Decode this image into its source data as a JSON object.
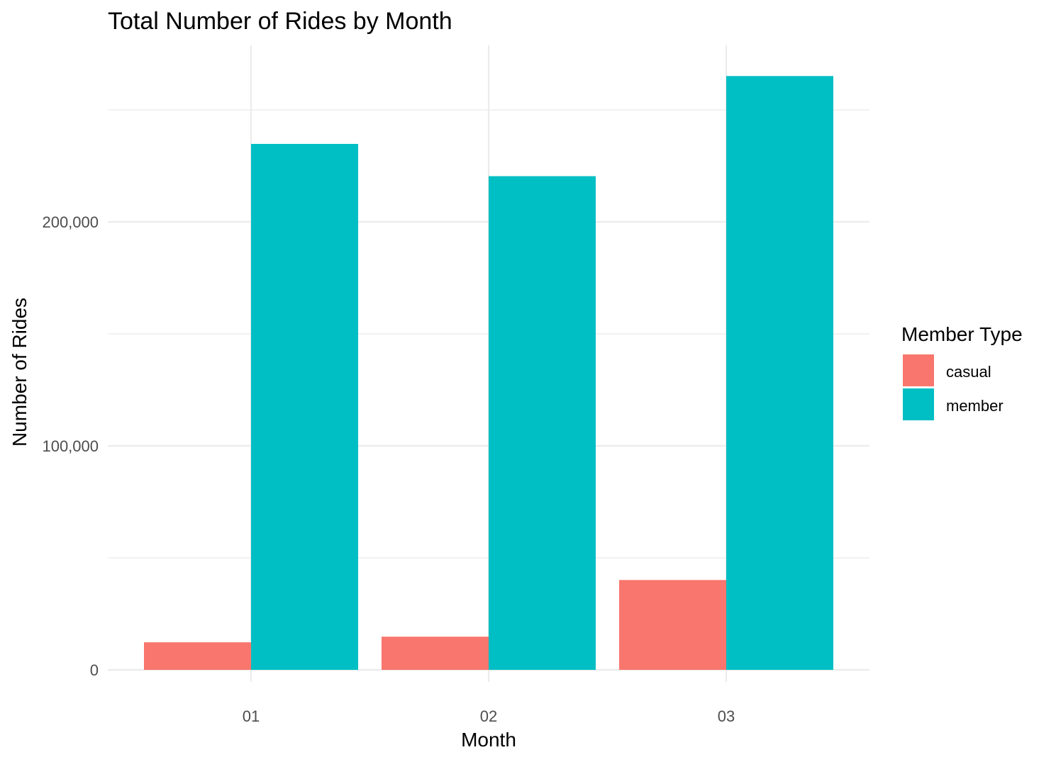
{
  "chart_data": {
    "type": "bar",
    "title": "Total Number of Rides by Month",
    "xlabel": "Month",
    "ylabel": "Number of Rides",
    "categories": [
      "01",
      "02",
      "03"
    ],
    "series": [
      {
        "name": "casual",
        "values": [
          12300,
          14800,
          40100
        ],
        "color": "#F8766D"
      },
      {
        "name": "member",
        "values": [
          234800,
          220400,
          265100
        ],
        "color": "#00BFC4"
      }
    ],
    "ylim": [
      -11500,
      278000
    ],
    "y_ticks": [
      {
        "value": 0,
        "label": "0"
      },
      {
        "value": 100000,
        "label": "100,000"
      },
      {
        "value": 200000,
        "label": "200,000"
      }
    ],
    "y_minor_ticks": [
      50000,
      150000,
      250000
    ],
    "grid": true,
    "legend": {
      "title": "Member Type",
      "position": "right"
    }
  }
}
